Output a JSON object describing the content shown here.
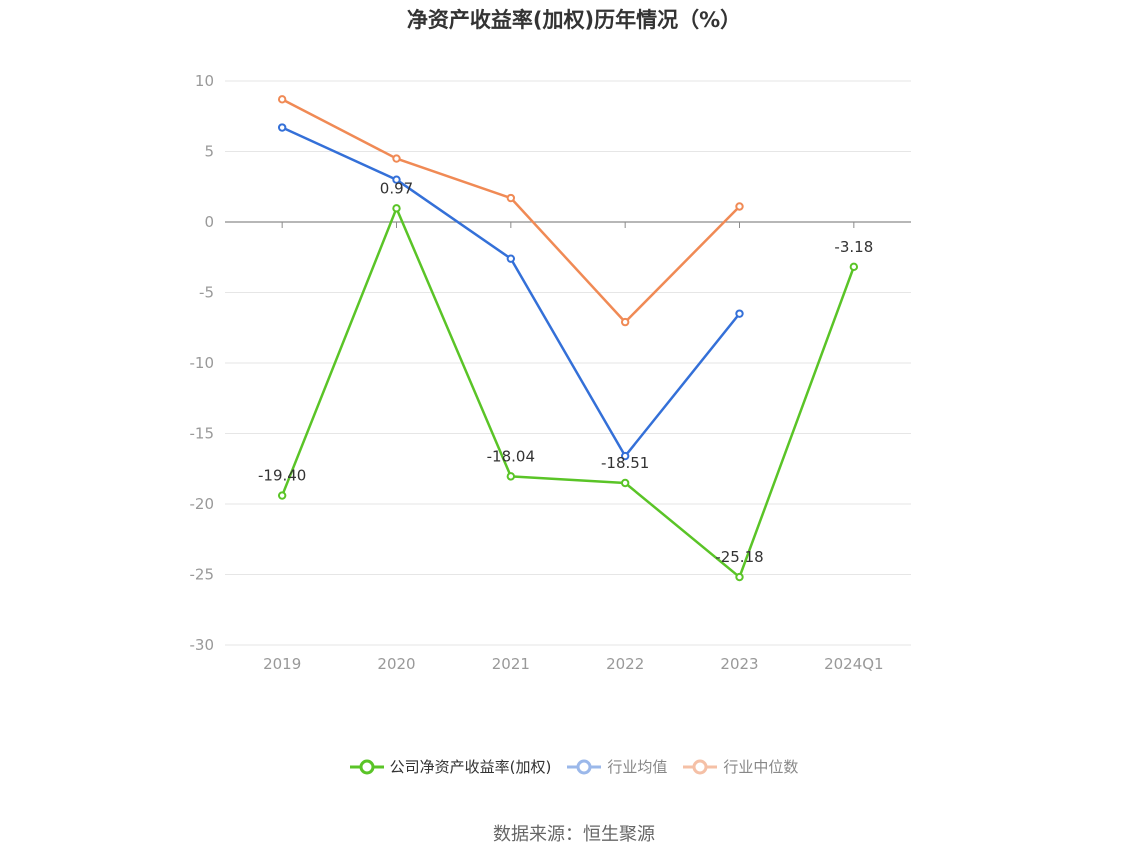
{
  "title": "净资产收益率(加权)历年情况（%）",
  "source": "数据来源：恒生聚源",
  "chart_data": {
    "type": "line",
    "title": "净资产收益率(加权)历年情况（%）",
    "categories": [
      "2019",
      "2020",
      "2021",
      "2022",
      "2023",
      "2024Q1"
    ],
    "ylim": [
      -30,
      10
    ],
    "yticks": [
      10,
      5,
      0,
      -5,
      -10,
      -15,
      -20,
      -25,
      -30
    ],
    "grid": true,
    "legend_position": "bottom",
    "series": [
      {
        "name": "公司净资产收益率(加权)",
        "color": "#5ac427",
        "values": [
          -19.4,
          0.97,
          -18.04,
          -18.51,
          -25.18,
          -3.18
        ],
        "labels": [
          "-19.40",
          "0.97",
          "-18.04",
          "-18.51",
          "-25.18",
          "-3.18"
        ]
      },
      {
        "name": "行业均值",
        "color": "#3470d8",
        "values": [
          6.7,
          3.0,
          -2.6,
          -16.6,
          -6.5,
          null
        ]
      },
      {
        "name": "行业中位数",
        "color": "#f08a55",
        "values": [
          8.7,
          4.5,
          1.7,
          -7.1,
          1.1,
          null
        ]
      }
    ]
  }
}
